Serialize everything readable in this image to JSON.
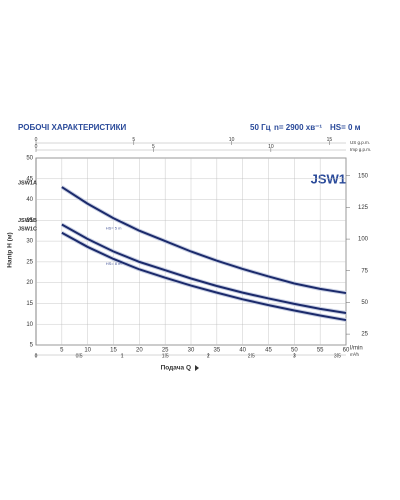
{
  "chart_data": {
    "type": "line",
    "title": "РОБОЧІ ХАРАКТЕРИСТИКИ",
    "subtitle": [
      "50 Гц",
      "n= 2900 хв⁻¹",
      "HS= 0 м"
    ],
    "logo": "JSW1",
    "ylabel": "Напір H (м)",
    "xlabel": "Подача Q",
    "x_unit": "l/min",
    "x": [
      5,
      10,
      15,
      20,
      25,
      30,
      35,
      40,
      45,
      50,
      55,
      60
    ],
    "xlim": [
      0,
      60
    ],
    "xticks": [
      5,
      10,
      15,
      20,
      25,
      30,
      35,
      40,
      45,
      50,
      55,
      60
    ],
    "ylim": [
      5,
      50
    ],
    "yticks": [
      5,
      10,
      15,
      20,
      25,
      30,
      35,
      40,
      45,
      50
    ],
    "y2lim": [
      16.4,
      164
    ],
    "y2ticks": [
      25,
      50,
      75,
      100,
      125,
      150
    ],
    "grid": true,
    "series": [
      {
        "name": "JSW1A",
        "color": "#1b2a6b",
        "values": [
          43,
          39,
          35.5,
          32.5,
          30,
          27.5,
          25.3,
          23.3,
          21.5,
          19.8,
          18.5,
          17.5
        ]
      },
      {
        "name": "JSW1B",
        "color": "#1b2a6b",
        "values": [
          34,
          30.5,
          27.5,
          25,
          23,
          21,
          19.2,
          17.6,
          16.2,
          14.9,
          13.7,
          12.7
        ]
      },
      {
        "name": "JSW1C",
        "color": "#1b2a6b",
        "values": [
          32,
          28.6,
          25.7,
          23.2,
          21.2,
          19.3,
          17.6,
          16,
          14.6,
          13.3,
          12.1,
          11
        ]
      }
    ],
    "annotations": [
      "HS= 5 m",
      "HS= 8 m"
    ],
    "extra_x_axes": [
      {
        "label": "US g.p.m.",
        "lim": [
          0,
          15.85
        ],
        "ticks": [
          0,
          5,
          10,
          15
        ]
      },
      {
        "label": "Imp g.p.m.",
        "lim": [
          0,
          13.2
        ],
        "ticks": [
          0,
          5,
          10
        ]
      },
      {
        "label": "m³/h",
        "lim": [
          0,
          3.6
        ],
        "ticks": [
          0,
          0.5,
          1,
          1.5,
          2,
          2.5,
          3,
          3.5
        ]
      }
    ]
  }
}
